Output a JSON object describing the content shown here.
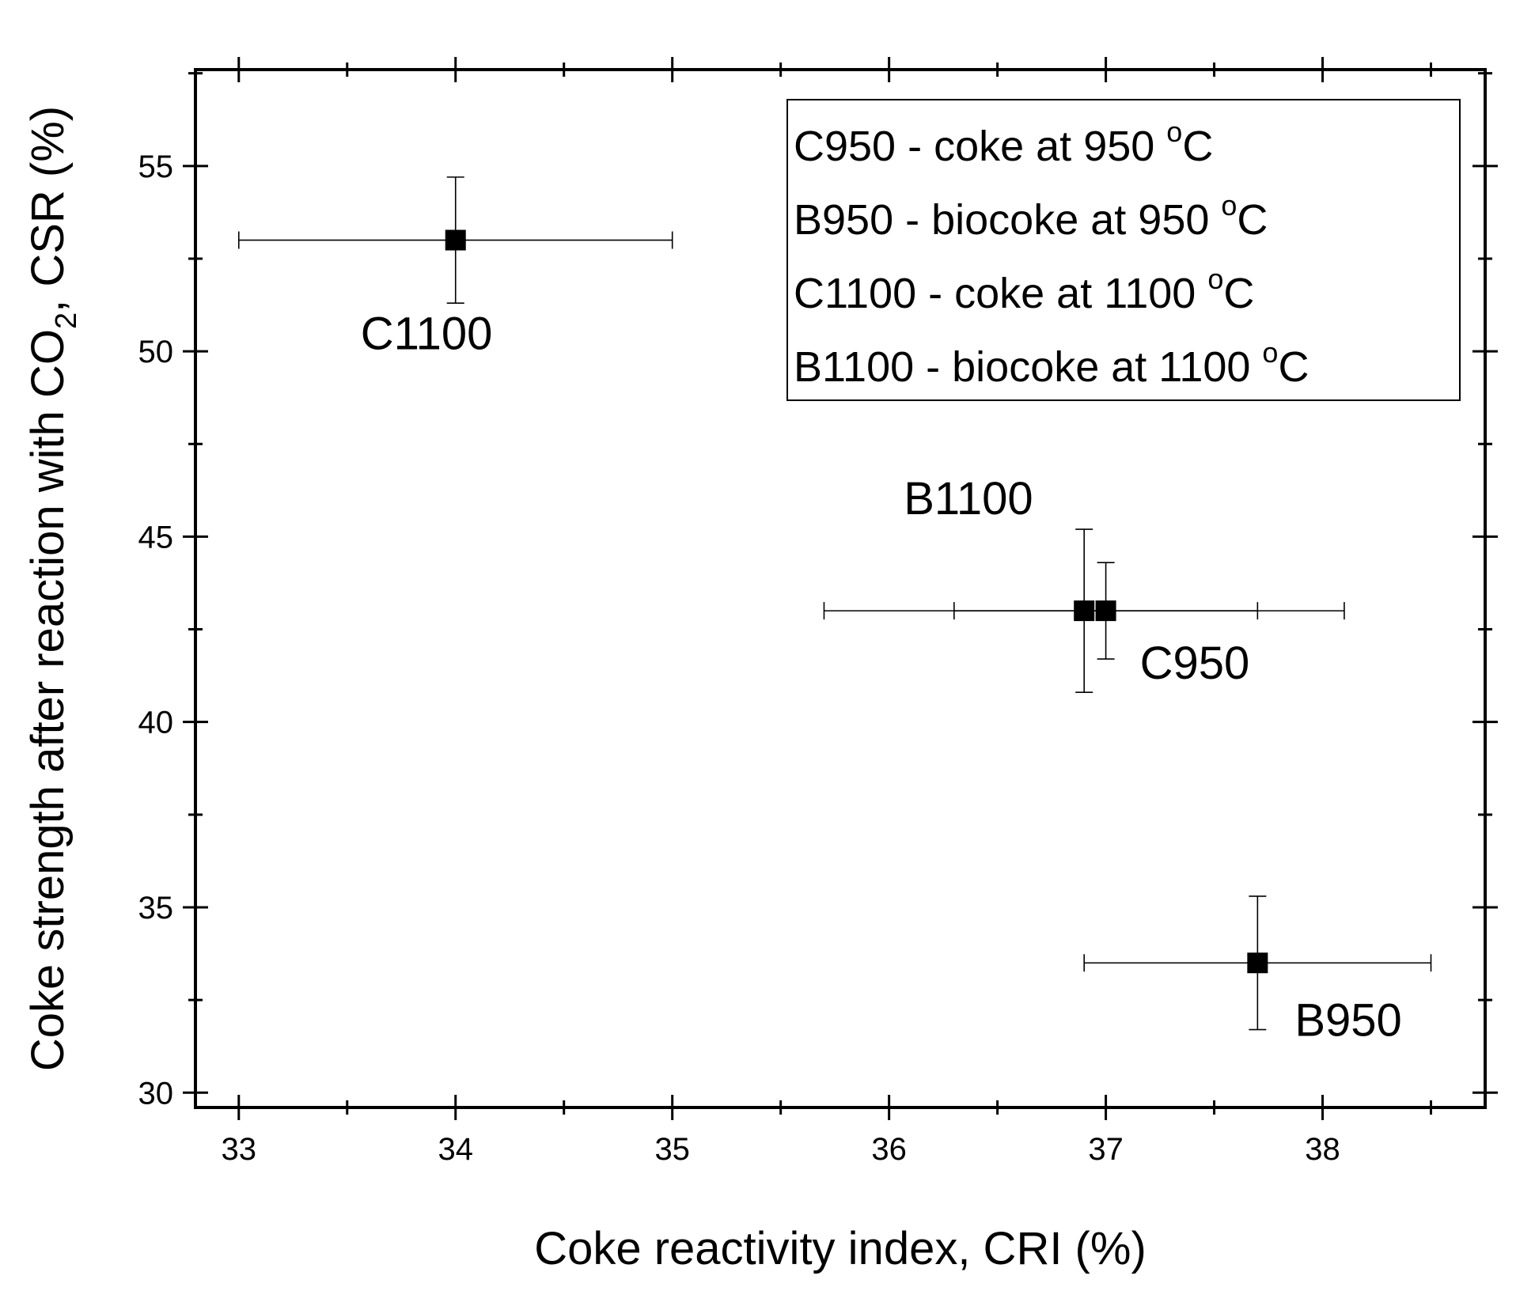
{
  "chart_data": {
    "type": "scatter",
    "xlabel": "Coke reactivity index, CRI (%)",
    "ylabel": {
      "prefix": "Coke strength after reaction with CO",
      "subscript": "2",
      "suffix": ", CSR (%)"
    },
    "xlim": [
      32.8,
      38.75
    ],
    "ylim": [
      29.6,
      57.6
    ],
    "x_ticks": [
      "33",
      "34",
      "35",
      "36",
      "37",
      "38"
    ],
    "y_ticks": [
      "30",
      "35",
      "40",
      "45",
      "50",
      "55"
    ],
    "grid": false,
    "marker_color": "#000000",
    "points": [
      {
        "label": "C1100",
        "x": 34.0,
        "y": 53.0,
        "x_err": [
          33.0,
          35.0
        ],
        "y_err": [
          51.3,
          54.7
        ]
      },
      {
        "label": "B1100",
        "x": 36.9,
        "y": 43.0,
        "x_err": [
          35.7,
          38.1
        ],
        "y_err": [
          40.8,
          45.2
        ]
      },
      {
        "label": "C950",
        "x": 37.0,
        "y": 43.0,
        "x_err": [
          36.3,
          37.7
        ],
        "y_err": [
          41.7,
          44.3
        ]
      },
      {
        "label": "B950",
        "x": 37.7,
        "y": 33.5,
        "x_err": [
          36.9,
          38.5
        ],
        "y_err": [
          31.7,
          35.3
        ]
      }
    ],
    "legend": {
      "position": "top-right",
      "entries": [
        {
          "code": "C950",
          "text": " - coke at 950 ",
          "sup": "o",
          "unit": "C"
        },
        {
          "code": "B950",
          "text": " - biocoke at 950 ",
          "sup": "o",
          "unit": "C"
        },
        {
          "code": "C1100",
          "text": " - coke at 1100 ",
          "sup": "o",
          "unit": "C"
        },
        {
          "code": "B1100",
          "text": " - biocoke at 1100 ",
          "sup": "o",
          "unit": "C"
        }
      ]
    }
  }
}
